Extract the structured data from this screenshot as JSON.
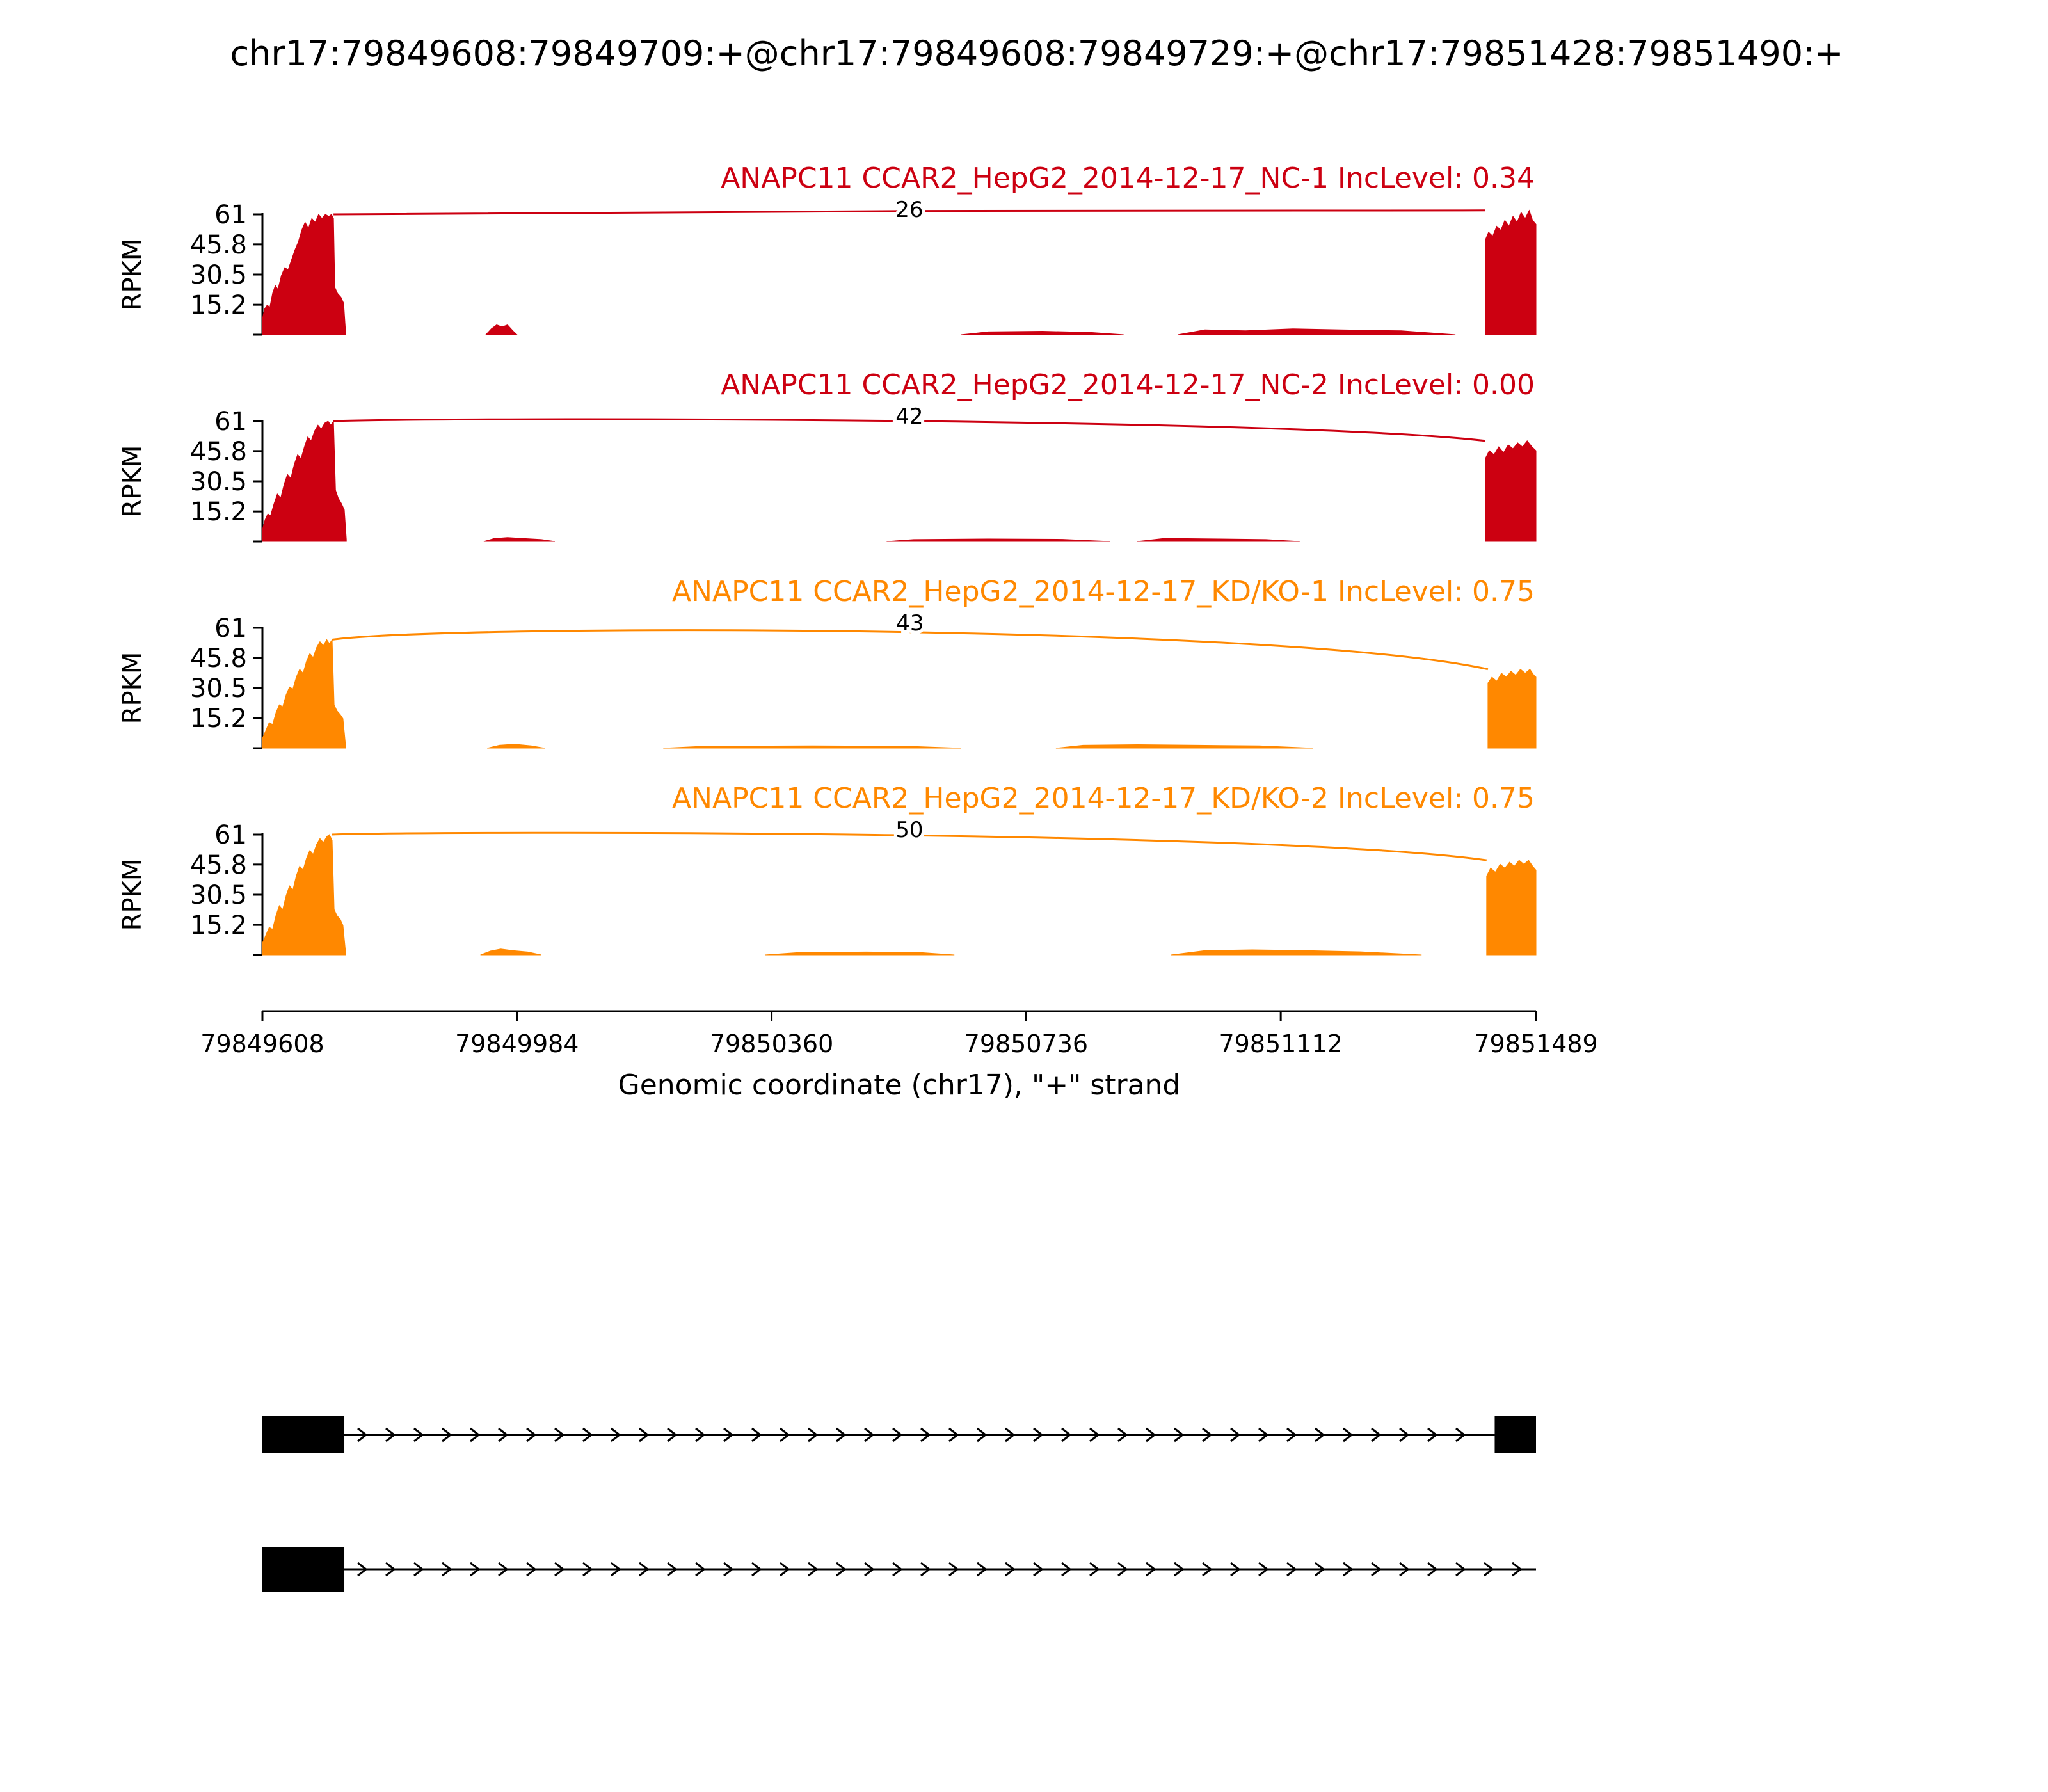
{
  "title": "chr17:79849608:79849709:+@chr17:79849608:79849729:+@chr17:79851428:79851490:+",
  "axis": {
    "ylabel": "RPKM",
    "yticks": [
      "15.2",
      "30.5",
      "45.8",
      "61"
    ],
    "xlabel": "Genomic coordinate (chr17), \"+\" strand",
    "xticks": [
      "79849608",
      "79849984",
      "79850360",
      "79850736",
      "79851112",
      "79851489"
    ]
  },
  "chart_data": {
    "type": "area",
    "title": "chr17:79849608:79849709:+@chr17:79849608:79849729:+@chr17:79851428:79851490:+",
    "xlabel": "Genomic coordinate (chr17), \"+\" strand",
    "ylabel": "RPKM",
    "ylim": [
      0,
      61
    ],
    "xlim": [
      79849608,
      79851489
    ],
    "legend_position": "none",
    "grid": false,
    "tracks": [
      {
        "label": "ANAPC11 CCAR2_HepG2_2014-12-17_NC-1 IncLevel: 0.34",
        "sample": "ANAPC11 CCAR2_HepG2_2014-12-17_NC-1",
        "inc_level": "0.34",
        "color": "#CC0011",
        "junction": {
          "start": 79849713,
          "end": 79851414,
          "reads": "26"
        },
        "coverage": [
          [
            [
              79849608,
              8
            ],
            [
              79849611,
              13
            ],
            [
              79849615,
              15
            ],
            [
              79849619,
              14
            ],
            [
              79849623,
              21
            ],
            [
              79849627,
              25
            ],
            [
              79849631,
              23
            ],
            [
              79849636,
              30
            ],
            [
              79849641,
              34
            ],
            [
              79849646,
              33
            ],
            [
              79849651,
              38
            ],
            [
              79849656,
              43
            ],
            [
              79849661,
              47
            ],
            [
              79849666,
              53
            ],
            [
              79849671,
              57
            ],
            [
              79849676,
              54
            ],
            [
              79849681,
              59
            ],
            [
              79849686,
              57
            ],
            [
              79849691,
              61
            ],
            [
              79849696,
              59
            ],
            [
              79849701,
              61
            ],
            [
              79849706,
              60
            ],
            [
              79849710,
              61
            ],
            [
              79849713,
              59
            ],
            [
              79849715,
              24
            ],
            [
              79849719,
              21
            ],
            [
              79849724,
              19
            ],
            [
              79849728,
              16
            ],
            [
              79849731,
              1
            ]
          ],
          [
            [
              79849938,
              0
            ],
            [
              79849946,
              3
            ],
            [
              79849954,
              5
            ],
            [
              79849962,
              4
            ],
            [
              79849970,
              5
            ],
            [
              79849978,
              2
            ],
            [
              79849984,
              0
            ]
          ],
          [
            [
              79850640,
              0
            ],
            [
              79850680,
              1.5
            ],
            [
              79850760,
              1.8
            ],
            [
              79850830,
              1.2
            ],
            [
              79850880,
              0
            ]
          ],
          [
            [
              79850960,
              0
            ],
            [
              79851000,
              2.5
            ],
            [
              79851060,
              2
            ],
            [
              79851130,
              3
            ],
            [
              79851200,
              2.5
            ],
            [
              79851290,
              2
            ],
            [
              79851370,
              0
            ]
          ],
          [
            [
              79851414,
              48
            ],
            [
              79851419,
              52
            ],
            [
              79851425,
              50
            ],
            [
              79851431,
              55
            ],
            [
              79851437,
              53
            ],
            [
              79851443,
              58
            ],
            [
              79851449,
              55
            ],
            [
              79851455,
              60
            ],
            [
              79851461,
              57
            ],
            [
              79851467,
              62
            ],
            [
              79851473,
              59
            ],
            [
              79851479,
              63
            ],
            [
              79851484,
              58
            ],
            [
              79851489,
              56
            ]
          ]
        ]
      },
      {
        "label": "ANAPC11 CCAR2_HepG2_2014-12-17_NC-2 IncLevel: 0.00",
        "sample": "ANAPC11 CCAR2_HepG2_2014-12-17_NC-2",
        "inc_level": "0.00",
        "color": "#CC0011",
        "junction": {
          "start": 79849713,
          "end": 79851414,
          "reads": "42"
        },
        "coverage": [
          [
            [
              79849608,
              6
            ],
            [
              79849612,
              11
            ],
            [
              79849616,
              14
            ],
            [
              79849620,
              13
            ],
            [
              79849625,
              19
            ],
            [
              79849630,
              24
            ],
            [
              79849635,
              22
            ],
            [
              79849640,
              29
            ],
            [
              79849645,
              34
            ],
            [
              79849650,
              32
            ],
            [
              79849655,
              39
            ],
            [
              79849660,
              44
            ],
            [
              79849665,
              42
            ],
            [
              79849670,
              48
            ],
            [
              79849675,
              53
            ],
            [
              79849680,
              51
            ],
            [
              79849685,
              56
            ],
            [
              79849690,
              59
            ],
            [
              79849695,
              57
            ],
            [
              79849700,
              60
            ],
            [
              79849705,
              61
            ],
            [
              79849709,
              59
            ],
            [
              79849713,
              61
            ],
            [
              79849716,
              26
            ],
            [
              79849720,
              22
            ],
            [
              79849725,
              19
            ],
            [
              79849729,
              16
            ],
            [
              79849732,
              1
            ]
          ],
          [
            [
              79849935,
              0
            ],
            [
              79849950,
              1.5
            ],
            [
              79849970,
              2
            ],
            [
              79849995,
              1.5
            ],
            [
              79850020,
              1
            ],
            [
              79850040,
              0
            ]
          ],
          [
            [
              79850530,
              0
            ],
            [
              79850570,
              1
            ],
            [
              79850680,
              1.3
            ],
            [
              79850790,
              1.1
            ],
            [
              79850860,
              0
            ]
          ],
          [
            [
              79850900,
              0
            ],
            [
              79850940,
              1.6
            ],
            [
              79851020,
              1.3
            ],
            [
              79851090,
              1
            ],
            [
              79851140,
              0
            ]
          ],
          [
            [
              79851414,
              42
            ],
            [
              79851420,
              46
            ],
            [
              79851427,
              44
            ],
            [
              79851434,
              48
            ],
            [
              79851441,
              45
            ],
            [
              79851448,
              49
            ],
            [
              79851455,
              47
            ],
            [
              79851462,
              50
            ],
            [
              79851469,
              48
            ],
            [
              79851476,
              51
            ],
            [
              79851483,
              48
            ],
            [
              79851489,
              46
            ]
          ]
        ]
      },
      {
        "label": "ANAPC11 CCAR2_HepG2_2014-12-17_KD/KO-1 IncLevel: 0.75",
        "sample": "ANAPC11 CCAR2_HepG2_2014-12-17_KD/KO-1",
        "inc_level": "0.75",
        "color": "#FF8800",
        "junction": {
          "start": 79849711,
          "end": 79851418,
          "reads": "43"
        },
        "coverage": [
          [
            [
              79849608,
              5
            ],
            [
              79849613,
              9
            ],
            [
              79849618,
              13
            ],
            [
              79849623,
              12
            ],
            [
              79849628,
              18
            ],
            [
              79849633,
              22
            ],
            [
              79849638,
              21
            ],
            [
              79849643,
              27
            ],
            [
              79849648,
              31
            ],
            [
              79849653,
              30
            ],
            [
              79849658,
              36
            ],
            [
              79849663,
              40
            ],
            [
              79849668,
              38
            ],
            [
              79849673,
              44
            ],
            [
              79849678,
              48
            ],
            [
              79849683,
              46
            ],
            [
              79849688,
              51
            ],
            [
              79849693,
              54
            ],
            [
              79849698,
              52
            ],
            [
              79849703,
              55
            ],
            [
              79849707,
              53
            ],
            [
              79849711,
              55
            ],
            [
              79849714,
              22
            ],
            [
              79849718,
              19
            ],
            [
              79849723,
              17
            ],
            [
              79849727,
              15
            ],
            [
              79849731,
              1
            ]
          ],
          [
            [
              79849940,
              0
            ],
            [
              79849958,
              1.5
            ],
            [
              79849980,
              2
            ],
            [
              79850005,
              1.2
            ],
            [
              79850025,
              0
            ]
          ],
          [
            [
              79850200,
              0
            ],
            [
              79850260,
              1
            ],
            [
              79850420,
              1.2
            ],
            [
              79850560,
              1
            ],
            [
              79850640,
              0
            ]
          ],
          [
            [
              79850780,
              0
            ],
            [
              79850820,
              1.5
            ],
            [
              79850900,
              1.8
            ],
            [
              79850990,
              1.5
            ],
            [
              79851080,
              1.2
            ],
            [
              79851160,
              0
            ]
          ],
          [
            [
              79851418,
              33
            ],
            [
              79851424,
              36
            ],
            [
              79851431,
              34
            ],
            [
              79851438,
              38
            ],
            [
              79851445,
              36
            ],
            [
              79851452,
              39
            ],
            [
              79851459,
              37
            ],
            [
              79851466,
              40
            ],
            [
              79851473,
              38
            ],
            [
              79851480,
              40
            ],
            [
              79851486,
              37
            ],
            [
              79851489,
              36
            ]
          ]
        ]
      },
      {
        "label": "ANAPC11 CCAR2_HepG2_2014-12-17_KD/KO-2 IncLevel: 0.75",
        "sample": "ANAPC11 CCAR2_HepG2_2014-12-17_KD/KO-2",
        "inc_level": "0.75",
        "color": "#FF8800",
        "junction": {
          "start": 79849711,
          "end": 79851416,
          "reads": "50"
        },
        "coverage": [
          [
            [
              79849608,
              6
            ],
            [
              79849613,
              10
            ],
            [
              79849618,
              14
            ],
            [
              79849623,
              13
            ],
            [
              79849628,
              20
            ],
            [
              79849633,
              25
            ],
            [
              79849638,
              23
            ],
            [
              79849643,
              30
            ],
            [
              79849648,
              35
            ],
            [
              79849653,
              33
            ],
            [
              79849658,
              40
            ],
            [
              79849663,
              45
            ],
            [
              79849668,
              43
            ],
            [
              79849673,
              49
            ],
            [
              79849678,
              53
            ],
            [
              79849683,
              51
            ],
            [
              79849688,
              56
            ],
            [
              79849693,
              59
            ],
            [
              79849698,
              57
            ],
            [
              79849703,
              60
            ],
            [
              79849707,
              61
            ],
            [
              79849711,
              58
            ],
            [
              79849714,
              23
            ],
            [
              79849718,
              20
            ],
            [
              79849723,
              18
            ],
            [
              79849727,
              15
            ],
            [
              79849731,
              1
            ]
          ],
          [
            [
              79849930,
              0
            ],
            [
              79849945,
              2
            ],
            [
              79849960,
              3
            ],
            [
              79849978,
              2.2
            ],
            [
              79850000,
              1.5
            ],
            [
              79850020,
              0
            ]
          ],
          [
            [
              79850350,
              0
            ],
            [
              79850400,
              1.2
            ],
            [
              79850500,
              1.5
            ],
            [
              79850580,
              1.2
            ],
            [
              79850630,
              0
            ]
          ],
          [
            [
              79850950,
              0
            ],
            [
              79851000,
              2.2
            ],
            [
              79851070,
              2.6
            ],
            [
              79851150,
              2.2
            ],
            [
              79851230,
              1.6
            ],
            [
              79851320,
              0
            ]
          ],
          [
            [
              79851416,
              40
            ],
            [
              79851422,
              44
            ],
            [
              79851429,
              42
            ],
            [
              79851436,
              46
            ],
            [
              79851443,
              44
            ],
            [
              79851450,
              47
            ],
            [
              79851457,
              45
            ],
            [
              79851464,
              48
            ],
            [
              79851471,
              46
            ],
            [
              79851478,
              48
            ],
            [
              79851484,
              45
            ],
            [
              79851489,
              43
            ]
          ]
        ]
      }
    ],
    "isoforms": [
      {
        "exons": [
          [
            79849608,
            79849729
          ],
          [
            79851428,
            79851490
          ]
        ],
        "strand_line": [
          79849729,
          79851428
        ]
      },
      {
        "exons": [
          [
            79849608,
            79849729
          ]
        ],
        "strand_line": [
          79849729,
          79851489
        ]
      }
    ]
  }
}
